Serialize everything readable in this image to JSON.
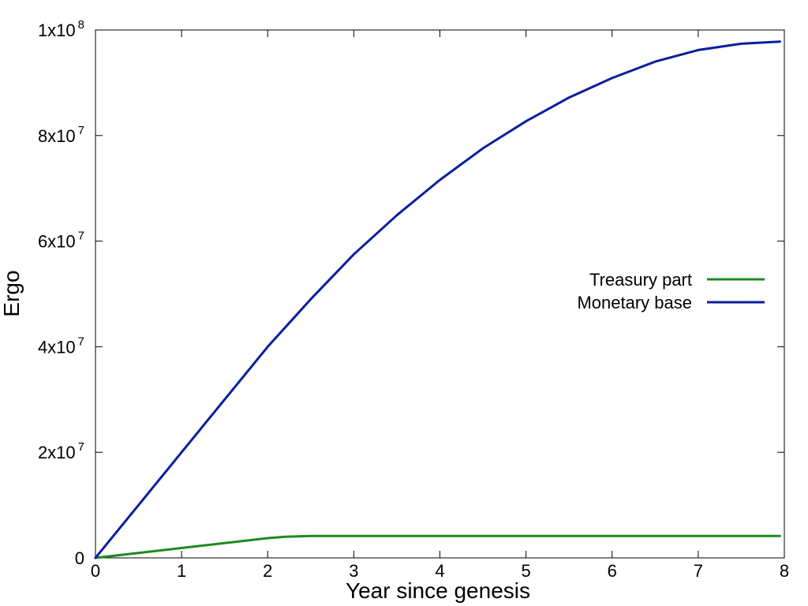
{
  "chart_data": {
    "type": "line",
    "title": "",
    "xlabel": "Year since genesis",
    "ylabel": "Ergo",
    "xlim": [
      0,
      8
    ],
    "ylim": [
      0,
      100000000
    ],
    "grid": false,
    "legend_position": "right",
    "x_ticks": [
      {
        "value": 0,
        "label": "0"
      },
      {
        "value": 1,
        "label": "1"
      },
      {
        "value": 2,
        "label": "2"
      },
      {
        "value": 3,
        "label": "3"
      },
      {
        "value": 4,
        "label": "4"
      },
      {
        "value": 5,
        "label": "5"
      },
      {
        "value": 6,
        "label": "6"
      },
      {
        "value": 7,
        "label": "7"
      },
      {
        "value": 8,
        "label": "8"
      }
    ],
    "y_ticks": [
      {
        "value": 0,
        "mantissa": "0",
        "exponent": ""
      },
      {
        "value": 20000000,
        "mantissa": "2x10",
        "exponent": "7"
      },
      {
        "value": 40000000,
        "mantissa": "4x10",
        "exponent": "7"
      },
      {
        "value": 60000000,
        "mantissa": "6x10",
        "exponent": "7"
      },
      {
        "value": 80000000,
        "mantissa": "8x10",
        "exponent": "7"
      },
      {
        "value": 100000000,
        "mantissa": "1x10",
        "exponent": "8"
      }
    ],
    "series": [
      {
        "name": "Treasury part",
        "color": "#1e8a1e",
        "x": [
          0,
          0.5,
          1,
          1.5,
          2,
          2.2,
          2.5,
          3,
          4,
          5,
          6,
          7,
          7.95
        ],
        "y": [
          0,
          930000,
          1870000,
          2800000,
          3740000,
          4000000,
          4140000,
          4140000,
          4140000,
          4140000,
          4140000,
          4140000,
          4140000
        ]
      },
      {
        "name": "Monetary base",
        "color": "#0a1e9e",
        "x": [
          0,
          0.5,
          1,
          1.5,
          2,
          2.5,
          3,
          3.5,
          4,
          4.5,
          5,
          5.5,
          6,
          6.5,
          7,
          7.5,
          7.95
        ],
        "y": [
          0,
          10000000,
          20000000,
          30000000,
          40000000,
          49000000,
          57500000,
          64900000,
          71600000,
          77600000,
          82700000,
          87200000,
          90900000,
          94000000,
          96200000,
          97400000,
          97800000
        ]
      }
    ]
  }
}
